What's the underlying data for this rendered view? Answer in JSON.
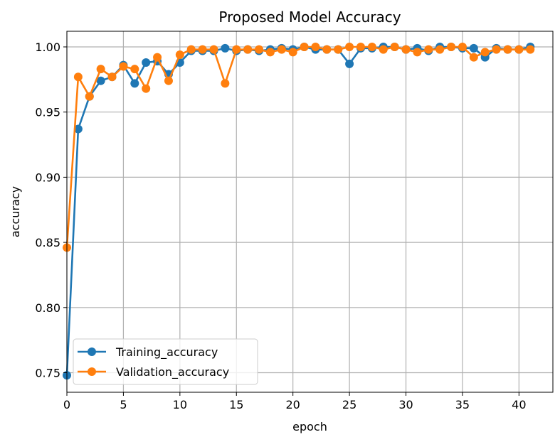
{
  "chart_data": {
    "type": "line",
    "title": "Proposed Model Accuracy",
    "xlabel": "epoch",
    "ylabel": "accuracy",
    "xlim": [
      0,
      43
    ],
    "ylim": [
      0.735,
      1.012
    ],
    "xticks": [
      0,
      5,
      10,
      15,
      20,
      25,
      30,
      35,
      40
    ],
    "yticks": [
      0.75,
      0.8,
      0.85,
      0.9,
      0.95,
      1.0
    ],
    "ytick_labels": [
      "0.75",
      "0.80",
      "0.85",
      "0.90",
      "0.95",
      "1.00"
    ],
    "grid": true,
    "legend_position": "lower-left",
    "x": [
      0,
      1,
      2,
      3,
      4,
      5,
      6,
      7,
      8,
      9,
      10,
      11,
      12,
      13,
      14,
      15,
      16,
      17,
      18,
      19,
      20,
      21,
      22,
      23,
      24,
      25,
      26,
      27,
      28,
      29,
      30,
      31,
      32,
      33,
      34,
      35,
      36,
      37,
      38,
      39,
      40,
      41
    ],
    "series": [
      {
        "name": "Training_accuracy",
        "color": "#1f77b4",
        "values": [
          0.748,
          0.937,
          0.962,
          0.974,
          0.977,
          0.986,
          0.972,
          0.988,
          0.989,
          0.979,
          0.988,
          0.997,
          0.997,
          0.997,
          0.999,
          0.997,
          0.998,
          0.997,
          0.998,
          0.999,
          0.998,
          1.0,
          0.998,
          0.998,
          0.998,
          0.987,
          0.999,
          0.999,
          1.0,
          1.0,
          0.998,
          0.999,
          0.997,
          1.0,
          1.0,
          0.999,
          0.999,
          0.992,
          0.999,
          0.998,
          0.998,
          1.0
        ]
      },
      {
        "name": "Validation_accuracy",
        "color": "#ff7f0e",
        "values": [
          0.846,
          0.977,
          0.962,
          0.983,
          0.977,
          0.985,
          0.983,
          0.968,
          0.992,
          0.974,
          0.994,
          0.998,
          0.998,
          0.998,
          0.972,
          0.998,
          0.998,
          0.998,
          0.996,
          0.998,
          0.996,
          1.0,
          1.0,
          0.998,
          0.998,
          1.0,
          1.0,
          1.0,
          0.998,
          1.0,
          0.998,
          0.996,
          0.998,
          0.998,
          1.0,
          1.0,
          0.992,
          0.996,
          0.998,
          0.998,
          0.998,
          0.998
        ]
      }
    ]
  }
}
